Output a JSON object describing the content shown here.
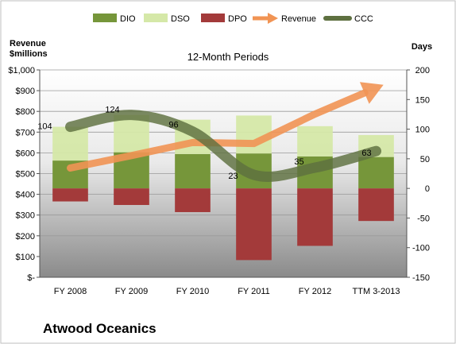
{
  "company": "Atwood Oceanics",
  "chart_data": {
    "type": "bar",
    "title": "12-Month Periods",
    "categories": [
      "FY 2008",
      "FY 2009",
      "FY 2010",
      "FY 2011",
      "FY 2012",
      "TTM 3-2013"
    ],
    "left_axis": {
      "label_line1": "Revenue",
      "label_line2": "$millions",
      "ticks": [
        "$-",
        "$100",
        "$200",
        "$300",
        "$400",
        "$500",
        "$600",
        "$700",
        "$800",
        "$900",
        "$1,000"
      ],
      "range": [
        0,
        1000
      ]
    },
    "right_axis": {
      "label": "Days",
      "ticks": [
        "-150",
        "-100",
        "-50",
        "0",
        "50",
        "100",
        "150",
        "200"
      ],
      "range": [
        -150,
        200
      ]
    },
    "legend": {
      "position": "top",
      "items": [
        {
          "name": "DIO",
          "color": "#76963a",
          "kind": "box"
        },
        {
          "name": "DSO",
          "color": "#d5e8a8",
          "kind": "box"
        },
        {
          "name": "DPO",
          "color": "#a33a3a",
          "kind": "box"
        },
        {
          "name": "Revenue",
          "color": "#f19454",
          "kind": "arrow"
        },
        {
          "name": "CCC",
          "color": "#5e7040",
          "kind": "line"
        }
      ]
    },
    "series": [
      {
        "name": "DIO",
        "axis": "right",
        "values": [
          47,
          61,
          58,
          59,
          54,
          53
        ]
      },
      {
        "name": "DSO",
        "axis": "right",
        "values": [
          57,
          63,
          58,
          64,
          51,
          37
        ]
      },
      {
        "name": "DPO",
        "axis": "right",
        "values": [
          -22,
          -28,
          -40,
          -121,
          -97,
          -55
        ]
      },
      {
        "name": "Revenue",
        "axis": "left",
        "values": [
          527,
          587,
          650,
          645,
          787,
          913
        ]
      },
      {
        "name": "CCC",
        "axis": "right",
        "values": [
          104,
          124,
          96,
          23,
          35,
          63
        ]
      }
    ],
    "data_labels": {
      "series": "CCC",
      "values": [
        "104",
        "124",
        "96",
        "23",
        "35",
        "63"
      ]
    },
    "colors": {
      "DIO": "#76963a",
      "DSO": "#d5e8a8",
      "DPO": "#a33a3a",
      "Revenue": "#f19454",
      "CCC": "#5e7040"
    }
  }
}
